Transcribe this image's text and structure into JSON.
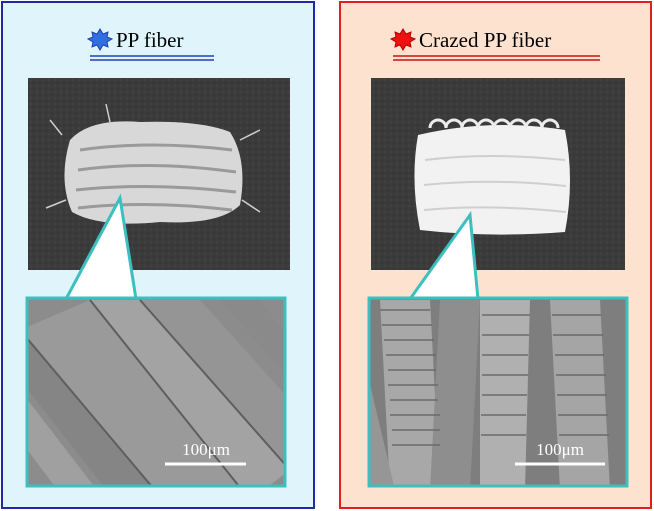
{
  "panels": [
    {
      "title": "PP fiber",
      "scale_bar": "100μm"
    },
    {
      "title": "Crazed PP fiber",
      "scale_bar": "100μm"
    }
  ]
}
